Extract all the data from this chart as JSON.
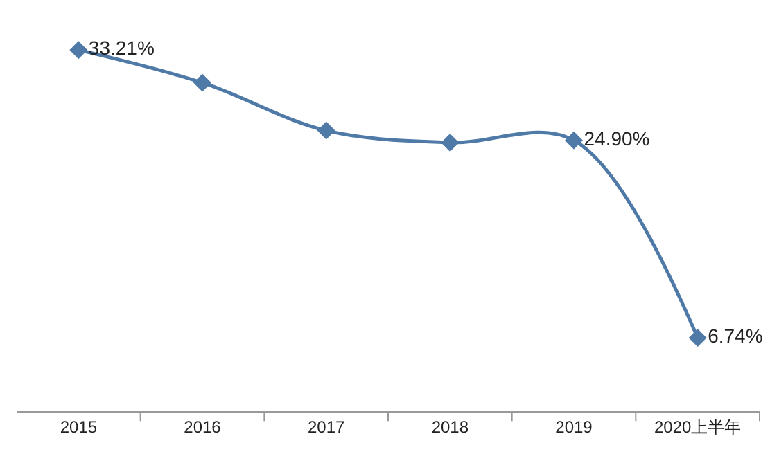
{
  "chart_data": {
    "type": "line",
    "categories": [
      "2015",
      "2016",
      "2017",
      "2018",
      "2019",
      "2020上半年"
    ],
    "series": [
      {
        "color": "#4f7aa8",
        "values": [
          33.21,
          30.2,
          25.8,
          24.7,
          24.9,
          6.74
        ],
        "value_labels": [
          "33.21%",
          null,
          null,
          null,
          "24.90%",
          "6.74%"
        ]
      }
    ],
    "marker": "diamond",
    "line_style": "solid",
    "legend": false,
    "tick_labels": "x"
  }
}
